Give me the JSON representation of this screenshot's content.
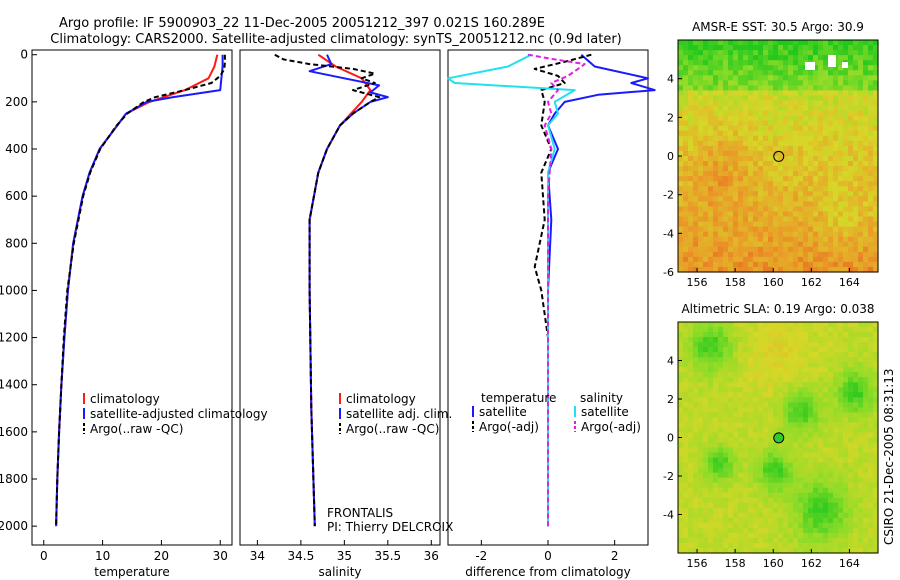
{
  "figure": {
    "title_line1": "Argo profile: IF 5900903_22 11-Dec-2005 20051212_397 0.021S 160.289E",
    "title_line2": "Climatology: CARS2000. Satellite-adjusted climatology: synTS_20051212.nc (0.9d later)",
    "credit": "CSIRO 21-Dec-2005 08:31:13",
    "frontalis_line1": "FRONTALIS",
    "frontalis_line2": "PI: Thierry DELCROIX"
  },
  "colors": {
    "climatology": "#ff1a1a",
    "satellite": "#1a1aff",
    "argo": "#000000",
    "salinity_satellite": "#22e0f0",
    "salinity_argo": "#e020e0"
  },
  "chart_data": [
    {
      "type": "line",
      "id": "temperature",
      "title": "",
      "xlabel": "temperature",
      "ylabel": "",
      "xlim": [
        -2,
        32
      ],
      "ylim": [
        2080,
        -20
      ],
      "xticks": [
        0,
        10,
        20,
        30
      ],
      "yticks": [
        0,
        200,
        400,
        600,
        800,
        1000,
        1200,
        1400,
        1600,
        1800,
        2000
      ],
      "legend": [
        "climatology",
        "satellite-adjusted climatology",
        "Argo(..raw -QC)"
      ],
      "series": [
        {
          "name": "climatology",
          "color": "#ff1a1a",
          "dash": "",
          "depth": [
            0,
            50,
            100,
            150,
            200,
            250,
            300,
            400,
            500,
            600,
            800,
            1000,
            1200,
            1400,
            1600,
            1800,
            2000
          ],
          "values": [
            29.5,
            29.0,
            28.0,
            24.0,
            18.0,
            14.0,
            12.5,
            9.5,
            7.8,
            6.6,
            5.0,
            4.1,
            3.5,
            3.0,
            2.6,
            2.3,
            2.1
          ]
        },
        {
          "name": "satellite-adjusted climatology",
          "color": "#1a1aff",
          "dash": "",
          "depth": [
            0,
            50,
            100,
            150,
            180,
            200,
            250,
            300,
            400,
            500,
            600,
            800,
            1000,
            1200,
            1400,
            1600,
            1800,
            2000
          ],
          "values": [
            30.4,
            30.4,
            30.2,
            30.0,
            22.0,
            17.5,
            14.0,
            12.5,
            9.5,
            7.8,
            6.6,
            5.0,
            4.1,
            3.5,
            3.0,
            2.6,
            2.3,
            2.1
          ]
        },
        {
          "name": "Argo(..raw -QC)",
          "color": "#000000",
          "dash": "5,3",
          "depth": [
            0,
            30,
            60,
            90,
            120,
            150,
            180,
            200,
            250,
            300,
            400,
            500,
            600,
            800,
            1000,
            1200,
            1400,
            1600,
            1800,
            2000
          ],
          "values": [
            30.8,
            30.8,
            30.7,
            30.0,
            28.5,
            24.0,
            19.0,
            17.0,
            14.2,
            12.4,
            9.6,
            7.9,
            6.7,
            5.1,
            4.0,
            3.4,
            3.0,
            2.6,
            2.3,
            2.1
          ]
        }
      ]
    },
    {
      "type": "line",
      "id": "salinity",
      "title": "",
      "xlabel": "salinity",
      "ylabel": "",
      "xlim": [
        33.8,
        36.1
      ],
      "ylim": [
        2080,
        -20
      ],
      "xticks": [
        34,
        34.5,
        35,
        35.5,
        36
      ],
      "yticks": [],
      "legend": [
        "climatology",
        "satellite adj. clim.",
        "Argo(..raw -QC)"
      ],
      "series": [
        {
          "name": "climatology",
          "color": "#ff1a1a",
          "dash": "",
          "depth": [
            0,
            50,
            100,
            150,
            200,
            300,
            400,
            500,
            700,
            1000,
            1500,
            2000
          ],
          "values": [
            34.7,
            34.9,
            35.2,
            35.3,
            35.2,
            34.95,
            34.8,
            34.7,
            34.6,
            34.6,
            34.62,
            34.66
          ]
        },
        {
          "name": "satellite adj. clim.",
          "color": "#1a1aff",
          "dash": "",
          "depth": [
            0,
            40,
            70,
            100,
            130,
            160,
            180,
            200,
            250,
            300,
            400,
            500,
            700,
            1000,
            1500,
            2000
          ],
          "values": [
            34.8,
            34.85,
            34.6,
            35.0,
            35.4,
            35.3,
            35.5,
            35.3,
            35.1,
            34.95,
            34.8,
            34.7,
            34.6,
            34.6,
            34.62,
            34.66
          ]
        },
        {
          "name": "Argo(..raw -QC)",
          "color": "#000000",
          "dash": "5,3",
          "depth": [
            0,
            20,
            40,
            60,
            80,
            100,
            120,
            150,
            180,
            200,
            250,
            300,
            400,
            500,
            700,
            1000,
            1500,
            2000
          ],
          "values": [
            34.2,
            34.3,
            34.6,
            35.1,
            35.35,
            35.2,
            35.35,
            35.1,
            35.4,
            35.3,
            35.1,
            34.95,
            34.8,
            34.7,
            34.6,
            34.6,
            34.62,
            34.66
          ]
        }
      ]
    },
    {
      "type": "line",
      "id": "difference",
      "title": "",
      "xlabel": "difference from climatology",
      "ylabel": "",
      "xlim": [
        -3,
        3
      ],
      "ylim": [
        2080,
        -20
      ],
      "xticks": [
        -2,
        0,
        2
      ],
      "yticks": [],
      "legend_title_left": "temperature",
      "legend_title_right": "salinity",
      "legend": [
        "satellite",
        "Argo(-adj)",
        "satellite",
        "Argo(-adj)"
      ],
      "series": [
        {
          "name": "satellite",
          "group": "temperature",
          "color": "#1a1aff",
          "dash": "",
          "depth": [
            0,
            50,
            100,
            120,
            150,
            170,
            200,
            250,
            300,
            400,
            500,
            700,
            1000,
            1500,
            2000
          ],
          "values": [
            1.0,
            1.4,
            3.0,
            2.5,
            3.2,
            1.5,
            0.5,
            0.2,
            0.0,
            0.3,
            0.0,
            0.1,
            0.0,
            0.0,
            0.0
          ]
        },
        {
          "name": "Argo(-adj)",
          "group": "temperature",
          "color": "#000000",
          "dash": "5,3",
          "depth": [
            0,
            30,
            60,
            90,
            120,
            150,
            200,
            300,
            400,
            500,
            700,
            900,
            1000,
            1200,
            1500,
            2000
          ],
          "values": [
            1.3,
            0.5,
            -0.4,
            0.3,
            0.5,
            -0.2,
            -0.1,
            -0.2,
            0.1,
            -0.2,
            -0.1,
            -0.4,
            -0.2,
            0.0,
            0.0,
            0.0
          ]
        },
        {
          "name": "satellite",
          "group": "salinity",
          "color": "#22e0f0",
          "dash": "",
          "depth": [
            0,
            50,
            100,
            120,
            150,
            200,
            250,
            300,
            400,
            500,
            700,
            1000,
            1500,
            2000
          ],
          "values": [
            -0.5,
            -1.2,
            -3.0,
            -2.8,
            0.8,
            0.2,
            0.3,
            0.0,
            0.2,
            0.0,
            0.0,
            0.0,
            0.0,
            0.0
          ]
        },
        {
          "name": "Argo(-adj)",
          "group": "salinity",
          "color": "#e020e0",
          "dash": "5,3",
          "depth": [
            0,
            20,
            40,
            60,
            90,
            120,
            150,
            200,
            250,
            300,
            400,
            600,
            1000,
            1500,
            2000
          ],
          "values": [
            -0.6,
            0.2,
            1.1,
            0.9,
            0.6,
            0.1,
            0.3,
            0.0,
            0.1,
            -0.1,
            0.1,
            0.0,
            0.0,
            0.0,
            0.0
          ]
        }
      ]
    },
    {
      "type": "heatmap",
      "id": "sst_map",
      "title": "AMSR-E SST: 30.5 Argo: 30.9",
      "xlim": [
        155,
        165.5
      ],
      "ylim": [
        -6,
        6
      ],
      "xticks": [
        156,
        158,
        160,
        162,
        164
      ],
      "yticks": [
        -6,
        -4,
        -2,
        0,
        2,
        4
      ],
      "marker": {
        "lon": 160.289,
        "lat": -0.021,
        "filled": false
      },
      "description": "sea surface temperature, green cooler to orange warmer"
    },
    {
      "type": "heatmap",
      "id": "sla_map",
      "title": "Altimetric SLA: 0.19 Argo: 0.038",
      "xlim": [
        155,
        165.5
      ],
      "ylim": [
        -6,
        6
      ],
      "xticks": [
        156,
        158,
        160,
        162,
        164
      ],
      "yticks": [
        -4,
        -2,
        0,
        2,
        4
      ],
      "marker": {
        "lon": 160.289,
        "lat": -0.021,
        "filled": true
      },
      "description": "sea level anomaly, green lower to orange higher"
    }
  ]
}
